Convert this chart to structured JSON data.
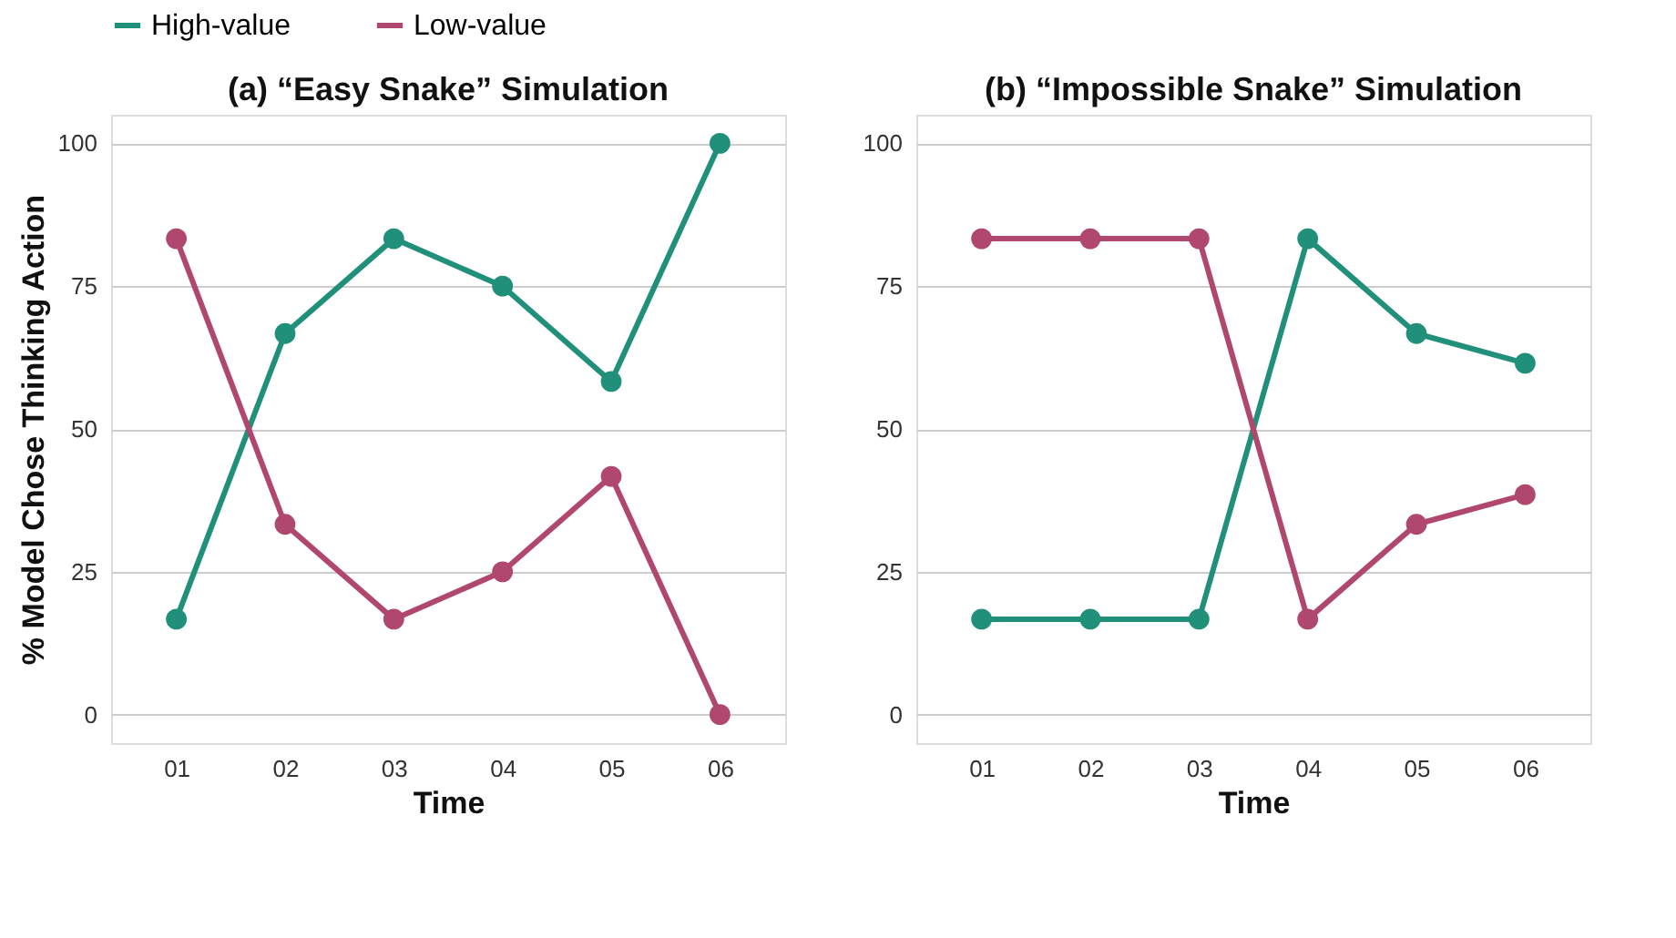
{
  "chart_data": [
    {
      "type": "line",
      "title": "(a) “Easy Snake” Simulation",
      "xlabel": "Time",
      "ylabel": "% Model Chose Thinking Action",
      "categories": [
        "01",
        "02",
        "03",
        "04",
        "05",
        "06"
      ],
      "ylim": [
        -5,
        105
      ],
      "yticks": [
        0,
        25,
        50,
        75,
        100
      ],
      "grid": "y",
      "legend": "top",
      "marker": "circle",
      "line_style": "solid",
      "series": [
        {
          "name": "High-value",
          "color": "#20907a",
          "values": [
            16.7,
            66.7,
            83.3,
            75,
            58.3,
            100
          ]
        },
        {
          "name": "Low-value",
          "color": "#b0476e",
          "values": [
            83.3,
            33.3,
            16.7,
            25,
            41.7,
            0
          ]
        }
      ]
    },
    {
      "type": "line",
      "title": "(b) “Impossible Snake” Simulation",
      "xlabel": "Time",
      "categories": [
        "01",
        "02",
        "03",
        "04",
        "05",
        "06"
      ],
      "ylim": [
        -5,
        105
      ],
      "yticks": [
        0,
        25,
        50,
        75,
        100
      ],
      "grid": "y",
      "legend": "top",
      "marker": "circle",
      "line_style": "solid",
      "series": [
        {
          "name": "High-value",
          "color": "#20907a",
          "values": [
            16.7,
            16.7,
            16.7,
            83.3,
            66.7,
            61.5
          ]
        },
        {
          "name": "Low-value",
          "color": "#b0476e",
          "values": [
            83.3,
            83.3,
            83.3,
            16.7,
            33.3,
            38.5
          ]
        }
      ]
    }
  ]
}
